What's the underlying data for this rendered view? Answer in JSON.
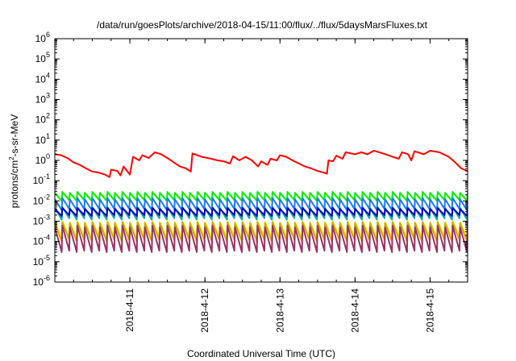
{
  "chart_data": {
    "type": "line",
    "title": "/data/run/goesPlots/archive/2018-04-15/11:00/flux/../flux/5daysMarsFluxes.txt",
    "xlabel": "Coordinated Universal Time (UTC)",
    "ylabel": {
      "pre": "protons/cm",
      "sup": "2",
      "post": "-s-sr-MeV"
    },
    "y_scale": "log",
    "ylim": [
      1e-06,
      1000000.0
    ],
    "y_ticks": [
      {
        "value": 1e-06,
        "base": "10",
        "exp": "-6"
      },
      {
        "value": 1e-05,
        "base": "10",
        "exp": "-5"
      },
      {
        "value": 0.0001,
        "base": "10",
        "exp": "-4"
      },
      {
        "value": 0.001,
        "base": "10",
        "exp": "-3"
      },
      {
        "value": 0.01,
        "base": "10",
        "exp": "-2"
      },
      {
        "value": 0.1,
        "base": "10",
        "exp": "-1"
      },
      {
        "value": 1,
        "base": "10",
        "exp": "0"
      },
      {
        "value": 10,
        "base": "10",
        "exp": "1"
      },
      {
        "value": 100,
        "base": "10",
        "exp": "2"
      },
      {
        "value": 1000,
        "base": "10",
        "exp": "3"
      },
      {
        "value": 10000,
        "base": "10",
        "exp": "4"
      },
      {
        "value": 100000,
        "base": "10",
        "exp": "5"
      },
      {
        "value": 1000000,
        "base": "10",
        "exp": "6"
      }
    ],
    "xlim": [
      "2018-04-10T00:00",
      "2018-04-15T12:00"
    ],
    "x_ticks": [
      {
        "value": "2018-04-11T00:00",
        "label": "2018-4-11"
      },
      {
        "value": "2018-04-12T00:00",
        "label": "2018-4-12"
      },
      {
        "value": "2018-04-13T00:00",
        "label": "2018-4-13"
      },
      {
        "value": "2018-04-14T00:00",
        "label": "2018-4-14"
      },
      {
        "value": "2018-04-15T00:00",
        "label": "2018-4-15"
      }
    ],
    "grid": false,
    "series": [
      {
        "color": "#ff0000",
        "points": [
          [
            "2018-04-10T00:00",
            2.0
          ],
          [
            "2018-04-10T02:00",
            1.8
          ],
          [
            "2018-04-10T04:00",
            1.3
          ],
          [
            "2018-04-10T06:00",
            0.8
          ],
          [
            "2018-04-10T08:00",
            0.6
          ],
          [
            "2018-04-10T10:00",
            0.4
          ],
          [
            "2018-04-10T12:00",
            0.28
          ],
          [
            "2018-04-10T14:00",
            0.25
          ],
          [
            "2018-04-10T16:00",
            0.2
          ],
          [
            "2018-04-10T17:30",
            0.15
          ],
          [
            "2018-04-10T18:00",
            0.35
          ],
          [
            "2018-04-10T20:00",
            0.3
          ],
          [
            "2018-04-10T21:00",
            0.18
          ],
          [
            "2018-04-10T22:00",
            0.5
          ],
          [
            "2018-04-11T00:00",
            0.2
          ],
          [
            "2018-04-11T01:00",
            1.5
          ],
          [
            "2018-04-11T03:00",
            1.0
          ],
          [
            "2018-04-11T04:00",
            1.8
          ],
          [
            "2018-04-11T06:00",
            1.3
          ],
          [
            "2018-04-11T08:00",
            2.5
          ],
          [
            "2018-04-11T10:00",
            2.0
          ],
          [
            "2018-04-11T12:00",
            1.3
          ],
          [
            "2018-04-11T14:00",
            0.8
          ],
          [
            "2018-04-11T16:00",
            0.5
          ],
          [
            "2018-04-11T18:00",
            0.4
          ],
          [
            "2018-04-11T19:30",
            0.28
          ],
          [
            "2018-04-11T20:00",
            2.2
          ],
          [
            "2018-04-11T23:00",
            1.5
          ],
          [
            "2018-04-12T02:00",
            1.2
          ],
          [
            "2018-04-12T04:00",
            1.0
          ],
          [
            "2018-04-12T06:00",
            0.9
          ],
          [
            "2018-04-12T08:00",
            0.7
          ],
          [
            "2018-04-12T09:00",
            1.6
          ],
          [
            "2018-04-12T11:00",
            1.0
          ],
          [
            "2018-04-12T13:00",
            1.5
          ],
          [
            "2018-04-12T15:00",
            1.0
          ],
          [
            "2018-04-12T17:00",
            0.5
          ],
          [
            "2018-04-12T18:00",
            0.9
          ],
          [
            "2018-04-12T20:00",
            0.6
          ],
          [
            "2018-04-12T21:00",
            1.2
          ],
          [
            "2018-04-12T23:00",
            1.0
          ],
          [
            "2018-04-13T00:00",
            1.8
          ],
          [
            "2018-04-13T02:00",
            1.5
          ],
          [
            "2018-04-13T04:00",
            1.0
          ],
          [
            "2018-04-13T06:00",
            0.7
          ],
          [
            "2018-04-13T08:00",
            0.5
          ],
          [
            "2018-04-13T10:00",
            0.4
          ],
          [
            "2018-04-13T12:00",
            0.3
          ],
          [
            "2018-04-13T14:00",
            0.25
          ],
          [
            "2018-04-13T15:00",
            0.22
          ],
          [
            "2018-04-13T15:30",
            1.0
          ],
          [
            "2018-04-13T17:00",
            0.9
          ],
          [
            "2018-04-13T18:00",
            1.7
          ],
          [
            "2018-04-13T20:00",
            1.2
          ],
          [
            "2018-04-13T21:00",
            2.5
          ],
          [
            "2018-04-14T00:00",
            2.0
          ],
          [
            "2018-04-14T02:00",
            2.5
          ],
          [
            "2018-04-14T04:00",
            2.0
          ],
          [
            "2018-04-14T06:00",
            3.0
          ],
          [
            "2018-04-14T09:00",
            2.2
          ],
          [
            "2018-04-14T12:00",
            1.5
          ],
          [
            "2018-04-14T14:00",
            1.2
          ],
          [
            "2018-04-14T15:00",
            2.5
          ],
          [
            "2018-04-14T17:00",
            2.0
          ],
          [
            "2018-04-14T18:00",
            1.0
          ],
          [
            "2018-04-14T19:00",
            2.8
          ],
          [
            "2018-04-14T22:00",
            2.0
          ],
          [
            "2018-04-15T00:00",
            3.0
          ],
          [
            "2018-04-15T03:00",
            2.5
          ],
          [
            "2018-04-15T06:00",
            1.5
          ],
          [
            "2018-04-15T08:00",
            0.8
          ],
          [
            "2018-04-15T10:00",
            0.4
          ],
          [
            "2018-04-15T12:00",
            0.3
          ]
        ]
      },
      {
        "color": "#00ee00",
        "sawtooth": {
          "peaks": [
            0.025,
            0.028
          ],
          "troughs": [
            0.01,
            0.011
          ],
          "period_hours": 2.4
        }
      },
      {
        "color": "#1f77ff",
        "sawtooth": {
          "peaks": [
            0.012,
            0.014
          ],
          "troughs": [
            0.0035,
            0.004
          ],
          "period_hours": 2.4
        }
      },
      {
        "color": "#00aaaa",
        "sawtooth": {
          "peaks": [
            0.0045,
            0.005
          ],
          "troughs": [
            0.0012,
            0.0014
          ],
          "period_hours": 2.4
        }
      },
      {
        "color": "#0000bb",
        "sawtooth": {
          "peaks": [
            0.004,
            0.0045
          ],
          "troughs": [
            0.0018,
            0.002
          ],
          "period_hours": 2.4
        }
      },
      {
        "color": "#ffee00",
        "sawtooth": {
          "peaks": [
            0.0009,
            0.001
          ],
          "troughs": [
            0.00015,
            0.00018
          ],
          "period_hours": 2.4
        }
      },
      {
        "color": "#ccaa00",
        "sawtooth": {
          "peaks": [
            0.0008,
            0.0009
          ],
          "troughs": [
            0.0001,
            0.00012
          ],
          "period_hours": 2.4
        }
      },
      {
        "color": "#993366",
        "sawtooth": {
          "peaks": [
            0.0005,
            0.0006
          ],
          "troughs": [
            3e-05,
            3.5e-05
          ],
          "period_hours": 2.4
        }
      }
    ]
  }
}
